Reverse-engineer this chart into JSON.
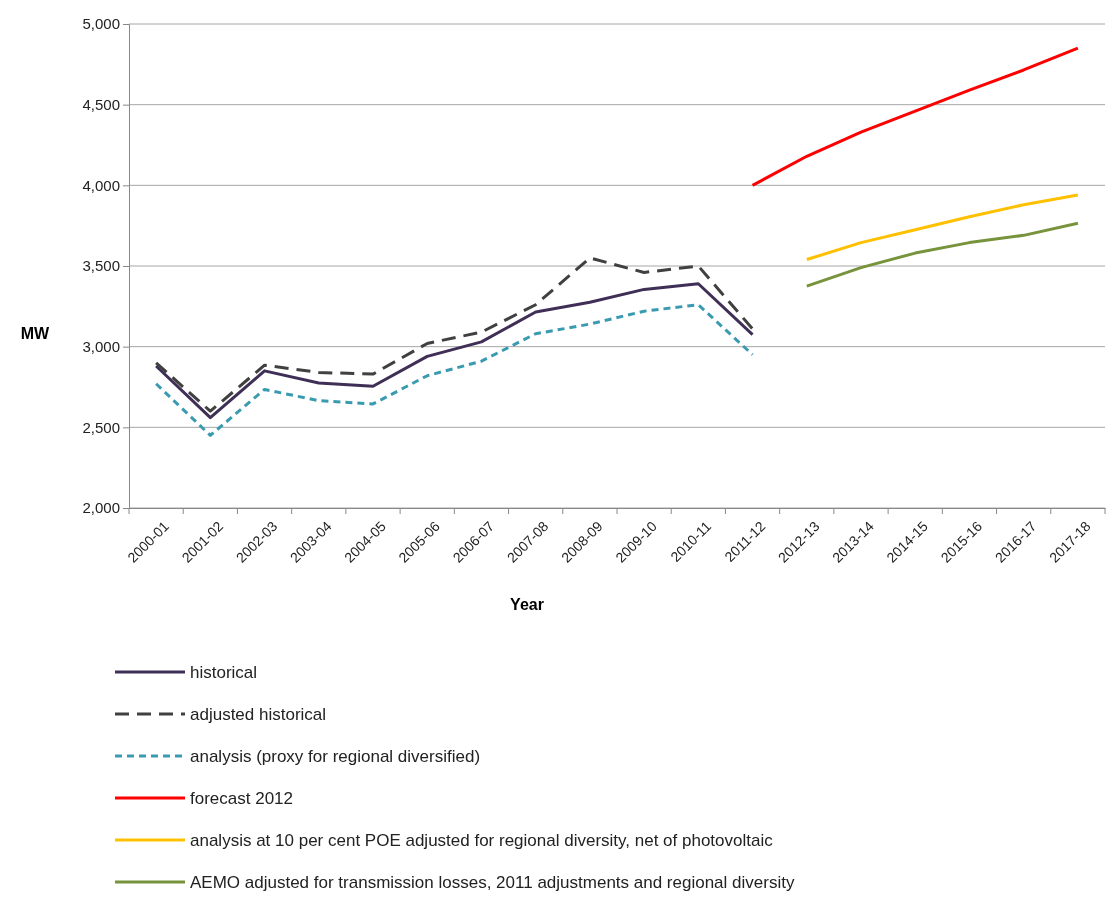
{
  "chart_data": {
    "type": "line",
    "xlabel": "Year",
    "ylabel": "MW",
    "categories": [
      "2000-01",
      "2001-02",
      "2002-03",
      "2003-04",
      "2004-05",
      "2005-06",
      "2006-07",
      "2007-08",
      "2008-09",
      "2009-10",
      "2010-11",
      "2011-12",
      "2012-13",
      "2013-14",
      "2014-15",
      "2015-16",
      "2016-17",
      "2017-18"
    ],
    "ylim": [
      2000,
      5000
    ],
    "yticks": [
      {
        "value": 2000,
        "label": "2,000"
      },
      {
        "value": 2500,
        "label": "2,500"
      },
      {
        "value": 3000,
        "label": "3,000"
      },
      {
        "value": 3500,
        "label": "3,500"
      },
      {
        "value": 4000,
        "label": "4,000"
      },
      {
        "value": 4500,
        "label": "4,500"
      },
      {
        "value": 5000,
        "label": "5,000"
      }
    ],
    "grid": "y",
    "legend": "bottom",
    "marker": "none",
    "series": [
      {
        "name": "historical",
        "color": "#3f2f56",
        "line_style": "solid",
        "values": [
          2880,
          2560,
          2850,
          2775,
          2755,
          2940,
          3030,
          3215,
          3275,
          3355,
          3390,
          3075,
          null,
          null,
          null,
          null,
          null,
          null
        ]
      },
      {
        "name": "adjusted historical",
        "color": "#404040",
        "line_style": "dashed",
        "values": [
          2900,
          2600,
          2885,
          2840,
          2830,
          3020,
          3090,
          3260,
          3550,
          3460,
          3500,
          3110,
          null,
          null,
          null,
          null,
          null,
          null
        ]
      },
      {
        "name": "analysis (proxy for regional diversified)",
        "color": "#3a9bb0",
        "line_style": "dotted",
        "values": [
          2770,
          2450,
          2735,
          2665,
          2645,
          2820,
          2910,
          3080,
          3140,
          3220,
          3260,
          2950,
          null,
          null,
          null,
          null,
          null,
          null
        ]
      },
      {
        "name": "forecast 2012",
        "color": "#ff0000",
        "line_style": "solid",
        "values": [
          null,
          null,
          null,
          null,
          null,
          null,
          null,
          null,
          null,
          null,
          null,
          4000,
          4180,
          4330,
          4460,
          4590,
          4715,
          4850
        ]
      },
      {
        "name": "analysis at 10 per cent POE adjusted for regional diversity, net of photovoltaic",
        "color": "#ffc000",
        "line_style": "solid",
        "values": [
          null,
          null,
          null,
          null,
          null,
          null,
          null,
          null,
          null,
          null,
          null,
          null,
          3540,
          3645,
          3725,
          3805,
          3880,
          3940
        ]
      },
      {
        "name": "AEMO adjusted for transmission losses, 2011 adjustments and regional diversity",
        "color": "#77933c",
        "line_style": "solid",
        "values": [
          null,
          null,
          null,
          null,
          null,
          null,
          null,
          null,
          null,
          null,
          null,
          null,
          3375,
          3490,
          3580,
          3645,
          3690,
          3765
        ]
      }
    ]
  }
}
